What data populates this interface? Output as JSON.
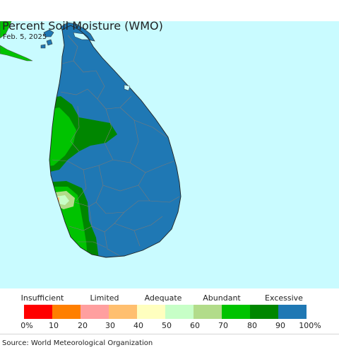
{
  "header": {
    "title": "Percent Soil Moisture (WMO)",
    "date": "Feb. 5, 2025"
  },
  "map": {
    "region": "Sri Lanka",
    "ocean_color": "#c9fbff",
    "dominant_class": "90-100%",
    "classes_present": [
      "50-60%",
      "60-70%",
      "70-80%",
      "80-90%",
      "90-100%"
    ]
  },
  "legend": {
    "categories": [
      "Insufficient",
      "Limited",
      "Adequate",
      "Abundant",
      "Excessive"
    ],
    "ticks": [
      "0%",
      "10",
      "20",
      "30",
      "40",
      "50",
      "60",
      "70",
      "80",
      "90",
      "100%"
    ],
    "colors": [
      "#ff0000",
      "#ff7f00",
      "#ff9f9f",
      "#ffbf6f",
      "#ffffbf",
      "#c7ffc7",
      "#b2dc8a",
      "#00c300",
      "#008600",
      "#1f78b4"
    ]
  },
  "footer": {
    "source": "Source: World Meteorological Organization"
  }
}
